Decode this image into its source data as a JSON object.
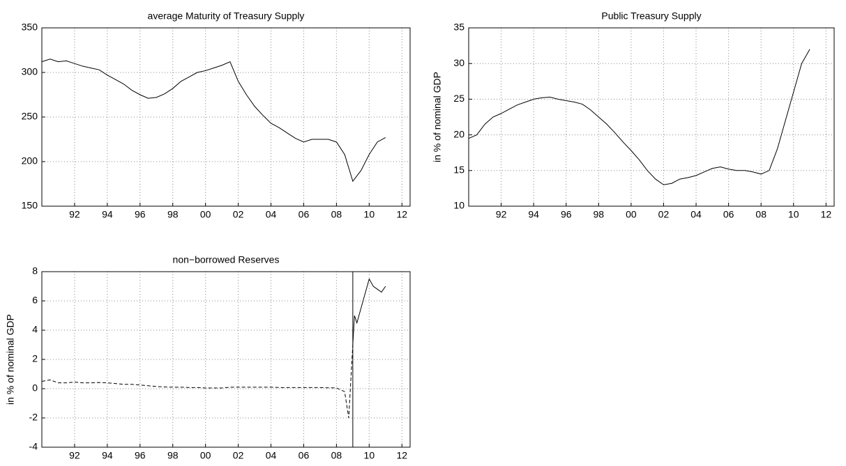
{
  "chart_data": [
    {
      "type": "line",
      "title": "average Maturity of Treasury Supply",
      "x": [
        1990,
        1990.5,
        1991,
        1991.5,
        1992,
        1992.5,
        1993,
        1993.5,
        1994,
        1994.5,
        1995,
        1995.5,
        1996,
        1996.5,
        1997,
        1997.5,
        1998,
        1998.5,
        1999,
        1999.5,
        2000,
        2000.5,
        2001,
        2001.5,
        2002,
        2002.5,
        2003,
        2003.5,
        2004,
        2004.5,
        2005,
        2005.5,
        2006,
        2006.5,
        2007,
        2007.5,
        2008,
        2008.5,
        2009,
        2009.5,
        2010,
        2010.5,
        2011
      ],
      "series": [
        {
          "color": "#000000",
          "linestyle": "solid",
          "values": [
            312,
            315,
            312,
            313,
            310,
            307,
            305,
            303,
            297,
            292,
            287,
            280,
            275,
            271,
            272,
            276,
            282,
            290,
            295,
            300,
            302,
            305,
            308,
            312,
            290,
            275,
            262,
            252,
            243,
            238,
            232,
            226,
            222,
            225,
            225,
            225,
            222,
            208,
            178,
            190,
            208,
            222,
            227
          ]
        }
      ],
      "xlim": [
        1990,
        2012.5
      ],
      "ylim": [
        150,
        350
      ],
      "xticks": [
        {
          "value": 1992,
          "label": "92"
        },
        {
          "value": 1994,
          "label": "94"
        },
        {
          "value": 1996,
          "label": "96"
        },
        {
          "value": 1998,
          "label": "98"
        },
        {
          "value": 2000,
          "label": "00"
        },
        {
          "value": 2002,
          "label": "02"
        },
        {
          "value": 2004,
          "label": "04"
        },
        {
          "value": 2006,
          "label": "06"
        },
        {
          "value": 2008,
          "label": "08"
        },
        {
          "value": 2010,
          "label": "10"
        },
        {
          "value": 2012,
          "label": "12"
        }
      ],
      "yticks": [
        150,
        200,
        250,
        300,
        350
      ],
      "grid": true
    },
    {
      "type": "line",
      "title": "Public Treasury Supply",
      "ylabel": "in % of nominal GDP",
      "x": [
        1990,
        1990.5,
        1991,
        1991.5,
        1992,
        1992.5,
        1993,
        1993.5,
        1994,
        1994.5,
        1995,
        1995.5,
        1996,
        1996.5,
        1997,
        1997.5,
        1998,
        1998.5,
        1999,
        1999.5,
        2000,
        2000.5,
        2001,
        2001.5,
        2002,
        2002.5,
        2003,
        2003.5,
        2004,
        2004.5,
        2005,
        2005.5,
        2006,
        2006.5,
        2007,
        2007.5,
        2008,
        2008.5,
        2009,
        2009.5,
        2010,
        2010.5,
        2011
      ],
      "series": [
        {
          "color": "#000000",
          "linestyle": "solid",
          "values": [
            19.5,
            20,
            21.5,
            22.5,
            23,
            23.6,
            24.2,
            24.6,
            25,
            25.2,
            25.3,
            25,
            24.8,
            24.6,
            24.3,
            23.5,
            22.5,
            21.5,
            20.3,
            19,
            17.8,
            16.5,
            15,
            13.8,
            13,
            13.2,
            13.8,
            14,
            14.3,
            14.8,
            15.3,
            15.5,
            15.2,
            15,
            15,
            14.8,
            14.5,
            15,
            18,
            22,
            26,
            30,
            32
          ]
        }
      ],
      "xlim": [
        1990,
        2012.5
      ],
      "ylim": [
        10,
        35
      ],
      "xticks": [
        {
          "value": 1992,
          "label": "92"
        },
        {
          "value": 1994,
          "label": "94"
        },
        {
          "value": 1996,
          "label": "96"
        },
        {
          "value": 1998,
          "label": "98"
        },
        {
          "value": 2000,
          "label": "00"
        },
        {
          "value": 2002,
          "label": "02"
        },
        {
          "value": 2004,
          "label": "04"
        },
        {
          "value": 2006,
          "label": "06"
        },
        {
          "value": 2008,
          "label": "08"
        },
        {
          "value": 2010,
          "label": "10"
        },
        {
          "value": 2012,
          "label": "12"
        }
      ],
      "yticks": [
        10,
        15,
        20,
        25,
        30,
        35
      ],
      "grid": true
    },
    {
      "type": "line",
      "title": "non−borrowed Reserves",
      "ylabel": "in % of nominal GDP",
      "x": [
        1990,
        1990.5,
        1991,
        1991.5,
        1992,
        1992.5,
        1993,
        1993.5,
        1994,
        1994.5,
        1995,
        1995.5,
        1996,
        1996.5,
        1997,
        1997.5,
        1998,
        1998.5,
        1999,
        1999.5,
        2000,
        2000.5,
        2001,
        2001.5,
        2002,
        2002.5,
        2003,
        2003.5,
        2004,
        2004.5,
        2005,
        2005.5,
        2006,
        2006.5,
        2007,
        2007.5,
        2008,
        2008.5,
        2008.75,
        2008.9,
        2009,
        2009.1,
        2009.25,
        2009.5,
        2009.75,
        2010,
        2010.25,
        2010.5,
        2010.75,
        2011
      ],
      "series": [
        {
          "color": "#000000",
          "linestyle": "dashed",
          "values": [
            0.5,
            0.6,
            0.4,
            0.4,
            0.45,
            0.4,
            0.4,
            0.42,
            0.4,
            0.35,
            0.3,
            0.3,
            0.25,
            0.2,
            0.15,
            0.12,
            0.1,
            0.1,
            0.08,
            0.08,
            0.05,
            0.05,
            0.05,
            0.1,
            0.1,
            0.1,
            0.1,
            0.1,
            0.1,
            0.08,
            0.08,
            0.08,
            0.08,
            0.08,
            0.08,
            0.06,
            0.05,
            -0.2,
            -2,
            1,
            3,
            null,
            null,
            null,
            null,
            null,
            null,
            null,
            null,
            null
          ]
        },
        {
          "color": "#000000",
          "linestyle": "solid",
          "values": [
            null,
            null,
            null,
            null,
            null,
            null,
            null,
            null,
            null,
            null,
            null,
            null,
            null,
            null,
            null,
            null,
            null,
            null,
            null,
            null,
            null,
            null,
            null,
            null,
            null,
            null,
            null,
            null,
            null,
            null,
            null,
            null,
            null,
            null,
            null,
            null,
            null,
            null,
            null,
            null,
            3,
            5,
            4.5,
            5.5,
            6.5,
            7.5,
            7,
            6.8,
            6.6,
            7
          ]
        }
      ],
      "vline": 2009,
      "xlim": [
        1990,
        2012.5
      ],
      "ylim": [
        -4,
        8
      ],
      "xticks": [
        {
          "value": 1992,
          "label": "92"
        },
        {
          "value": 1994,
          "label": "94"
        },
        {
          "value": 1996,
          "label": "96"
        },
        {
          "value": 1998,
          "label": "98"
        },
        {
          "value": 2000,
          "label": "00"
        },
        {
          "value": 2002,
          "label": "02"
        },
        {
          "value": 2004,
          "label": "04"
        },
        {
          "value": 2006,
          "label": "06"
        },
        {
          "value": 2008,
          "label": "08"
        },
        {
          "value": 2010,
          "label": "10"
        },
        {
          "value": 2012,
          "label": "12"
        }
      ],
      "yticks": [
        -4,
        -2,
        0,
        2,
        4,
        6,
        8
      ],
      "grid": true
    }
  ]
}
